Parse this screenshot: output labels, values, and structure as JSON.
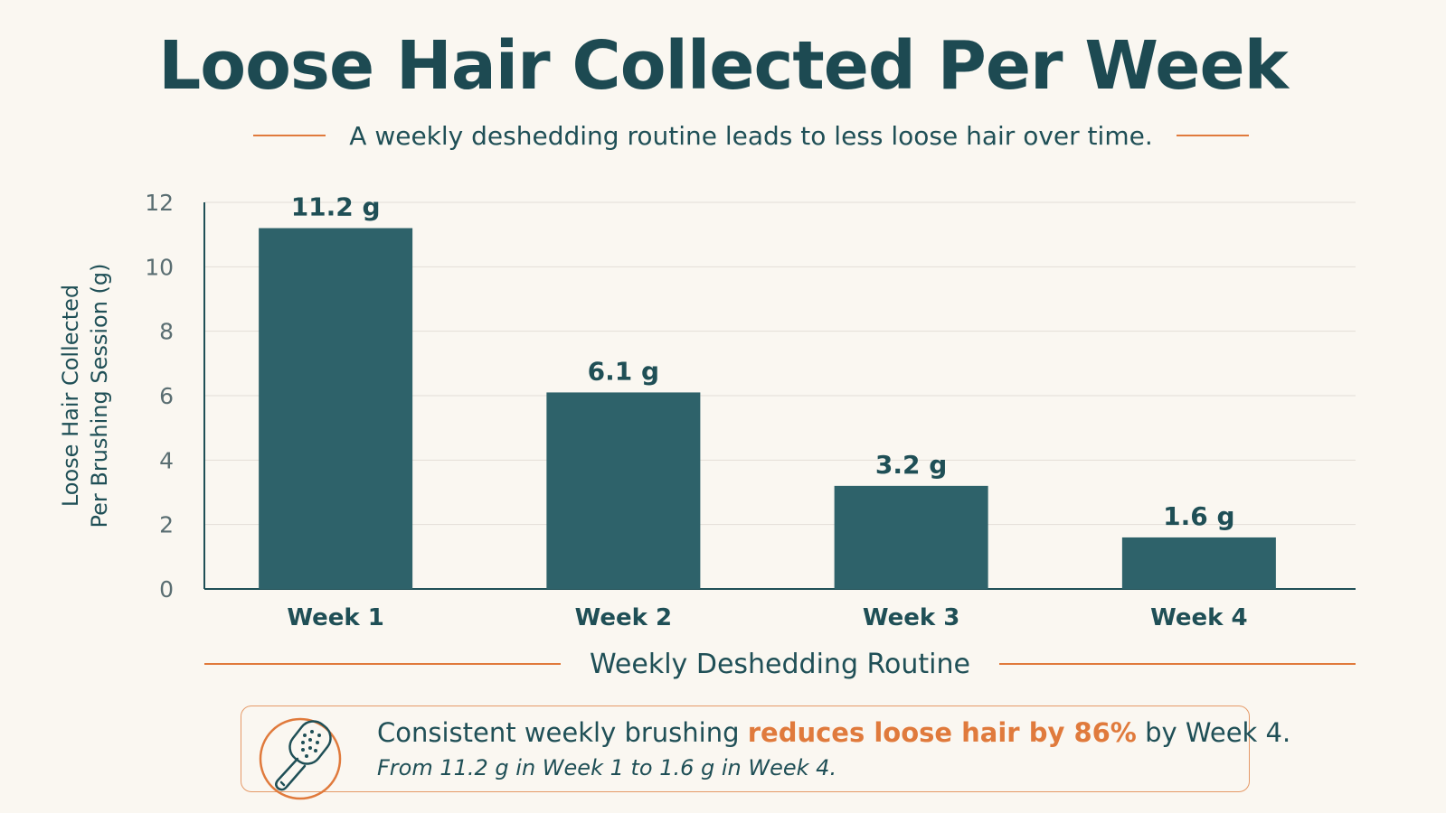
{
  "title": "Loose Hair Collected Per Week",
  "subtitle": "A weekly deshedding routine leads to less loose hair over time.",
  "colors": {
    "bar": "#2e626a",
    "accent": "#e07a3c",
    "text": "#1f4f56",
    "background": "#faf7f1"
  },
  "chart_data": {
    "type": "bar",
    "categories": [
      "Week 1",
      "Week 2",
      "Week 3",
      "Week 4"
    ],
    "values": [
      11.2,
      6.1,
      3.2,
      1.6
    ],
    "data_labels": [
      "11.2 g",
      "6.1 g",
      "3.2 g",
      "1.6 g"
    ],
    "xlabel": "Weekly Deshedding Routine",
    "ylabel_lines": [
      "Loose Hair Collected",
      "Per Brushing Session (g)"
    ],
    "ylim": [
      0,
      12
    ],
    "yticks": [
      0,
      2,
      4,
      6,
      8,
      10,
      12
    ],
    "grid": true,
    "legend": "none"
  },
  "callout": {
    "icon": "brush-icon",
    "text_before": "Consistent weekly brushing ",
    "text_highlight": "reduces loose hair by 86%",
    "text_after": " by Week 4.",
    "detail": "From 11.2 g in Week 1 to 1.6 g in Week 4."
  }
}
